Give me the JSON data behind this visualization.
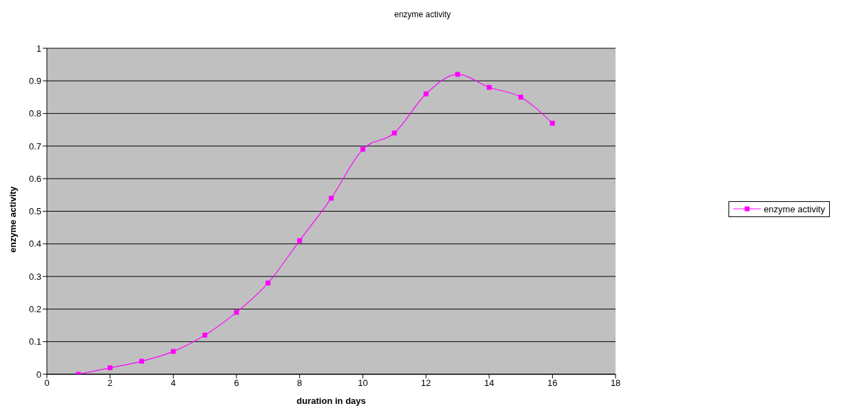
{
  "chart_data": {
    "type": "line",
    "title": "enzyme activity",
    "xlabel": "duration in days",
    "ylabel": "enzyme activity",
    "x": [
      1,
      2,
      3,
      4,
      5,
      6,
      7,
      8,
      9,
      10,
      11,
      12,
      13,
      14,
      15,
      16
    ],
    "series": [
      {
        "name": "enzyme activity",
        "color": "#ff00ff",
        "values": [
          0.0,
          0.02,
          0.04,
          0.07,
          0.12,
          0.19,
          0.28,
          0.41,
          0.54,
          0.69,
          0.74,
          0.86,
          0.92,
          0.88,
          0.85,
          0.77
        ]
      }
    ],
    "xlim": [
      0,
      18
    ],
    "xticks": [
      0,
      2,
      4,
      6,
      8,
      10,
      12,
      14,
      16,
      18
    ],
    "ylim": [
      0,
      1
    ],
    "yticks": [
      0,
      0.1,
      0.2,
      0.3,
      0.4,
      0.5,
      0.6,
      0.7,
      0.8,
      0.9,
      1
    ],
    "grid": "y",
    "legend": "right",
    "marker": "square",
    "line_style": "solid"
  }
}
